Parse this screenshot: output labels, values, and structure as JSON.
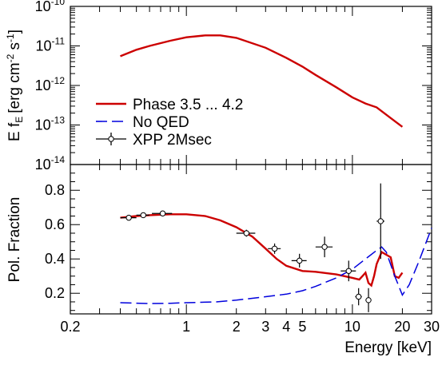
{
  "chart_data": [
    {
      "type": "line",
      "panel": "spectrum",
      "ylabel_main": "E f",
      "ylabel_sub": "E",
      "ylabel_unit_parts": [
        "[erg cm",
        "-2",
        " s",
        "-1",
        "]"
      ],
      "yscale": "log",
      "ylim": [
        1e-14,
        1e-10
      ],
      "yticks": [
        {
          "value": 1e-14,
          "mant": "10",
          "exp": "-14"
        },
        {
          "value": 1e-13,
          "mant": "10",
          "exp": "-13"
        },
        {
          "value": 1e-12,
          "mant": "10",
          "exp": "-12"
        },
        {
          "value": 1e-11,
          "mant": "10",
          "exp": "-11"
        },
        {
          "value": 1e-10,
          "mant": "10",
          "exp": "-10"
        }
      ],
      "series": [
        {
          "name": "Phase 3.5 ... 4.2",
          "color": "#cc0000",
          "x": [
            0.4,
            0.5,
            0.6,
            0.8,
            1.0,
            1.3,
            1.6,
            2.0,
            3.0,
            4.0,
            5.0,
            6.0,
            8.0,
            10.0,
            12.0,
            14.0,
            17.0,
            20.0
          ],
          "y": [
            5.5e-12,
            8e-12,
            1e-11,
            1.35e-11,
            1.65e-11,
            1.85e-11,
            1.85e-11,
            1.6e-11,
            9e-12,
            5e-12,
            3e-12,
            1.85e-12,
            9e-13,
            5e-13,
            3.5e-13,
            2.8e-13,
            1.5e-13,
            9e-14
          ]
        }
      ],
      "legend": [
        {
          "label": "Phase 3.5 ... 4.2",
          "style": "solid",
          "color": "#cc0000"
        },
        {
          "label": "No QED",
          "style": "dashed",
          "color": "#0000dd"
        },
        {
          "label": "XPP 2Msec",
          "style": "marker",
          "color": "#000000"
        }
      ],
      "legend_position": "bottom-left"
    },
    {
      "type": "line",
      "panel": "polarization",
      "ylabel": "Pol. Fraction",
      "xlabel": "Energy [keV]",
      "xscale": "log",
      "xlim": [
        0.2,
        30
      ],
      "ylim": [
        0.08,
        0.95
      ],
      "xticks": [
        {
          "value": 0.2,
          "label": "0.2"
        },
        {
          "value": 1,
          "label": "1"
        },
        {
          "value": 2,
          "label": "2"
        },
        {
          "value": 3,
          "label": "3"
        },
        {
          "value": 4,
          "label": "4"
        },
        {
          "value": 5,
          "label": "5"
        },
        {
          "value": 10,
          "label": "10"
        },
        {
          "value": 20,
          "label": "20"
        },
        {
          "value": 30,
          "label": "30"
        }
      ],
      "yticks": [
        {
          "value": 0.2,
          "label": "0.2"
        },
        {
          "value": 0.4,
          "label": "0.4"
        },
        {
          "value": 0.6,
          "label": "0.6"
        },
        {
          "value": 0.8,
          "label": "0.8"
        }
      ],
      "series": [
        {
          "name": "Phase 3.5 ... 4.2",
          "color": "#cc0000",
          "style": "solid",
          "x": [
            0.4,
            0.5,
            0.6,
            0.8,
            1.0,
            1.3,
            1.6,
            2.0,
            2.5,
            3.0,
            3.5,
            4.0,
            5.0,
            6.0,
            8.0,
            10.0,
            11.0,
            11.5,
            12.0,
            12.5,
            13.0,
            13.5,
            14.0,
            15.0,
            17.0,
            18.0,
            19.0,
            20.0
          ],
          "y": [
            0.64,
            0.65,
            0.655,
            0.66,
            0.66,
            0.65,
            0.625,
            0.585,
            0.53,
            0.46,
            0.4,
            0.36,
            0.33,
            0.325,
            0.31,
            0.29,
            0.28,
            0.3,
            0.32,
            0.26,
            0.245,
            0.3,
            0.37,
            0.44,
            0.41,
            0.3,
            0.29,
            0.32
          ]
        },
        {
          "name": "No QED",
          "color": "#0000dd",
          "style": "dashed",
          "x": [
            0.4,
            0.6,
            0.8,
            1.0,
            1.5,
            2.0,
            3.0,
            4.0,
            5.0,
            6.0,
            8.0,
            10.0,
            12.0,
            14.0,
            15.0,
            16.0,
            18.0,
            20.0,
            22.0,
            25.0,
            30.0
          ],
          "y": [
            0.145,
            0.14,
            0.142,
            0.145,
            0.15,
            0.16,
            0.18,
            0.195,
            0.215,
            0.24,
            0.29,
            0.34,
            0.4,
            0.45,
            0.47,
            0.44,
            0.3,
            0.19,
            0.25,
            0.38,
            0.58
          ]
        }
      ],
      "points": {
        "name": "XPP 2Msec",
        "x": [
          0.45,
          0.55,
          0.72,
          2.3,
          3.4,
          4.8,
          6.8,
          9.5,
          10.9,
          12.5,
          14.8
        ],
        "y": [
          0.64,
          0.655,
          0.665,
          0.55,
          0.46,
          0.39,
          0.47,
          0.33,
          0.18,
          0.16,
          0.62
        ],
        "xerr_lo": [
          0.05,
          0.05,
          0.1,
          0.3,
          0.3,
          0.5,
          0.8,
          1.0,
          0.5,
          0.5,
          0.8
        ],
        "xerr_hi": [
          0.05,
          0.05,
          0.1,
          0.3,
          0.3,
          0.5,
          0.8,
          1.0,
          0.5,
          0.5,
          0.8
        ],
        "yerr": [
          0.012,
          0.012,
          0.015,
          0.02,
          0.03,
          0.04,
          0.06,
          0.06,
          0.05,
          0.07,
          0.22
        ]
      }
    }
  ]
}
